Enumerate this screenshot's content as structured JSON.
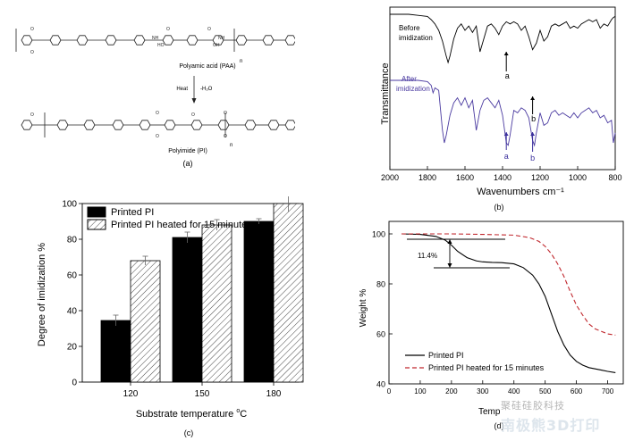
{
  "panel_a": {
    "label": "(a)",
    "paa_label": "Polyamic acid (PAA)",
    "pi_label": "Polyimide (PI)",
    "heat_label": "Heat",
    "water_label": "-H₂O",
    "subscript_n": "n",
    "bond_labels": [
      "O",
      "O",
      "O",
      "O",
      "HO",
      "OH",
      "NH",
      "NH",
      "O",
      "O",
      "O",
      "O",
      "O",
      "O"
    ]
  },
  "panel_b": {
    "label": "(b)",
    "ylabel": "Transmittance",
    "xlabel": "Wavenumbers cm⁻¹",
    "before_label": "Before imidization",
    "after_label": "After imidization",
    "peak_a": "a",
    "peak_b": "b"
  },
  "panel_c": {
    "label": "(c)"
  },
  "panel_d": {
    "label": "(d)",
    "annotation": "11.4%",
    "xlabel_visible": "Temp"
  },
  "watermark": {
    "line1": "聚硅硅胶科技",
    "line2": "南极熊3D打印"
  },
  "colors": {
    "before": "#000000",
    "after": "#4a3aa0",
    "bar_black": "#000000",
    "red_dash": "#c0272d",
    "peak_arrow": "#3a2f9c"
  },
  "chart_data": [
    {
      "type": "line",
      "panel": "b",
      "title": "",
      "xlabel": "Wavenumbers cm⁻¹",
      "ylabel": "Transmittance",
      "xlim": [
        2000,
        800
      ],
      "xticks": [
        2000,
        1800,
        1600,
        1400,
        1200,
        1000,
        800
      ],
      "series": [
        {
          "name": "Before imidization",
          "x": [
            2000,
            1900,
            1850,
            1800,
            1780,
            1760,
            1740,
            1720,
            1700,
            1690,
            1680,
            1660,
            1640,
            1620,
            1600,
            1580,
            1560,
            1540,
            1520,
            1500,
            1480,
            1460,
            1440,
            1420,
            1400,
            1380,
            1360,
            1340,
            1320,
            1300,
            1280,
            1260,
            1240,
            1220,
            1200,
            1180,
            1160,
            1140,
            1120,
            1100,
            1080,
            1060,
            1040,
            1020,
            1000,
            980,
            960,
            940,
            920,
            900,
            880,
            860,
            840,
            820,
            810,
            800
          ],
          "y": [
            0.95,
            0.95,
            0.94,
            0.93,
            0.9,
            0.86,
            0.8,
            0.7,
            0.56,
            0.5,
            0.56,
            0.72,
            0.82,
            0.86,
            0.8,
            0.84,
            0.78,
            0.84,
            0.6,
            0.72,
            0.84,
            0.86,
            0.82,
            0.76,
            0.84,
            0.88,
            0.86,
            0.88,
            0.86,
            0.8,
            0.84,
            0.74,
            0.62,
            0.68,
            0.8,
            0.7,
            0.74,
            0.84,
            0.86,
            0.84,
            0.86,
            0.88,
            0.82,
            0.84,
            0.82,
            0.86,
            0.88,
            0.9,
            0.88,
            0.9,
            0.82,
            0.86,
            0.84,
            0.9,
            0.92,
            0.93
          ]
        },
        {
          "name": "After imidization",
          "x": [
            2000,
            1900,
            1850,
            1800,
            1780,
            1770,
            1760,
            1740,
            1720,
            1710,
            1700,
            1680,
            1660,
            1640,
            1620,
            1600,
            1580,
            1560,
            1540,
            1520,
            1500,
            1480,
            1460,
            1440,
            1420,
            1400,
            1380,
            1370,
            1360,
            1340,
            1320,
            1300,
            1280,
            1260,
            1240,
            1230,
            1220,
            1200,
            1180,
            1160,
            1140,
            1120,
            1100,
            1080,
            1060,
            1040,
            1020,
            1000,
            980,
            960,
            940,
            920,
            900,
            880,
            860,
            840,
            820,
            810,
            800
          ],
          "y": [
            0.7,
            0.7,
            0.7,
            0.69,
            0.66,
            0.6,
            0.64,
            0.62,
            0.3,
            0.2,
            0.26,
            0.42,
            0.52,
            0.56,
            0.5,
            0.56,
            0.48,
            0.54,
            0.3,
            0.46,
            0.54,
            0.56,
            0.52,
            0.48,
            0.54,
            0.42,
            0.2,
            0.18,
            0.26,
            0.46,
            0.44,
            0.48,
            0.46,
            0.4,
            0.22,
            0.18,
            0.28,
            0.44,
            0.34,
            0.36,
            0.44,
            0.46,
            0.42,
            0.44,
            0.42,
            0.4,
            0.44,
            0.4,
            0.44,
            0.46,
            0.48,
            0.44,
            0.46,
            0.4,
            0.42,
            0.36,
            0.38,
            0.2,
            0.28
          ]
        }
      ],
      "annotations": [
        {
          "text": "a",
          "x": 1380,
          "series": "Before imidization",
          "arrow": "up"
        },
        {
          "text": "b",
          "x": 1240,
          "series": "Before imidization",
          "arrow": "up"
        },
        {
          "text": "a",
          "x": 1380,
          "series": "After imidization",
          "arrow": "up"
        },
        {
          "text": "b",
          "x": 1240,
          "series": "After imidization",
          "arrow": "up"
        }
      ]
    },
    {
      "type": "bar",
      "panel": "c",
      "title": "",
      "xlabel": "Substrate temperature °C",
      "ylabel": "Degree of imidization %",
      "ylim": [
        0,
        100
      ],
      "yticks": [
        0,
        20,
        40,
        60,
        80,
        100
      ],
      "categories": [
        "120",
        "150",
        "180"
      ],
      "legend_position": "top-left",
      "series": [
        {
          "name": "Printed PI",
          "values": [
            34.5,
            81,
            90
          ],
          "errors": [
            3,
            3,
            1.5
          ],
          "fill": "solid-black"
        },
        {
          "name": "Printed PI heated for 15 minutes",
          "values": [
            68,
            88,
            100
          ],
          "errors": [
            2.5,
            3,
            4.5
          ],
          "fill": "hatched"
        }
      ]
    },
    {
      "type": "line",
      "panel": "d",
      "title": "",
      "ylabel": "Weight %",
      "xlabel": "Temp",
      "xlim": [
        0,
        750
      ],
      "ylim": [
        40,
        105
      ],
      "xticks": [
        0,
        100,
        200,
        300,
        400,
        500,
        600,
        700
      ],
      "yticks": [
        40,
        60,
        80,
        100
      ],
      "legend_position": "bottom-left",
      "series": [
        {
          "name": "Printed PI",
          "style": "solid",
          "x": [
            40,
            100,
            150,
            180,
            200,
            220,
            250,
            280,
            300,
            330,
            360,
            400,
            430,
            460,
            480,
            500,
            520,
            540,
            560,
            580,
            600,
            620,
            640,
            660,
            680,
            700,
            725
          ],
          "y": [
            100,
            99.8,
            99,
            97.5,
            95.5,
            93,
            90.5,
            89.2,
            88.8,
            88.6,
            88.5,
            88,
            86.5,
            83.5,
            80,
            75,
            68,
            61,
            55.5,
            51.5,
            49,
            47.5,
            46.5,
            46,
            45.5,
            45,
            44.5
          ]
        },
        {
          "name": "Printed PI heated for 15 minutes",
          "style": "dashed",
          "x": [
            40,
            100,
            200,
            300,
            400,
            450,
            480,
            500,
            520,
            540,
            560,
            580,
            600,
            620,
            640,
            660,
            680,
            700,
            725
          ],
          "y": [
            100,
            100,
            100,
            99.8,
            99.5,
            98.5,
            97,
            95,
            92,
            88,
            83,
            77,
            71.5,
            67.5,
            64,
            62,
            61,
            60,
            59.5
          ]
        }
      ],
      "annotations": [
        {
          "text": "11.4%"
        }
      ]
    }
  ]
}
